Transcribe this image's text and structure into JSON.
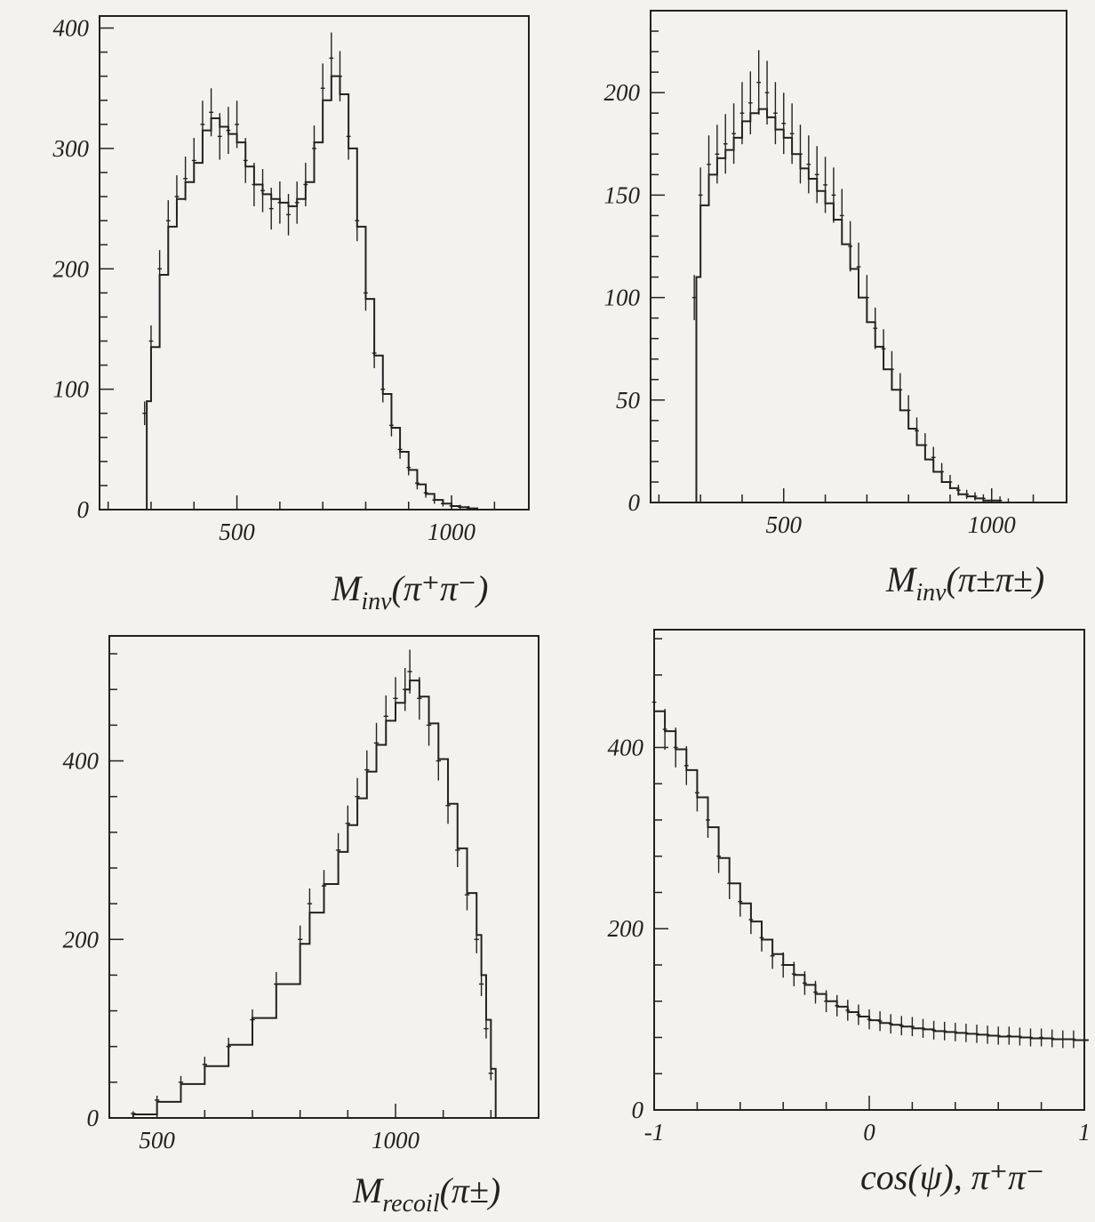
{
  "figure": {
    "background": "#f4f2ee",
    "ink": "#222222",
    "panels": [
      {
        "id": "minv-pm",
        "xlabel_main": "M",
        "xlabel_sub": "inv",
        "xlabel_rest": "(π⁺π⁻)"
      },
      {
        "id": "minv-ss",
        "xlabel_main": "M",
        "xlabel_sub": "inv",
        "xlabel_rest": "(π±π±)"
      },
      {
        "id": "mrecoil",
        "xlabel_main": "M",
        "xlabel_sub": "recoil",
        "xlabel_rest": "(π±)"
      },
      {
        "id": "cospsi",
        "xlabel_main": "cos(ψ), π⁺π⁻",
        "xlabel_sub": "",
        "xlabel_rest": ""
      }
    ]
  },
  "chart_data": [
    {
      "type": "histogram",
      "title": "",
      "xlabel": "M_inv(π⁺π⁻)",
      "ylabel": "",
      "xlim": [
        180,
        1180
      ],
      "ylim": [
        0,
        410
      ],
      "xticks": [
        500,
        1000
      ],
      "yticks": [
        0,
        100,
        200,
        300,
        400
      ],
      "bin_width": 10,
      "series": [
        {
          "kind": "data-points-with-errors",
          "x": [
            285,
            300,
            320,
            340,
            360,
            380,
            400,
            420,
            440,
            460,
            480,
            500,
            520,
            540,
            560,
            580,
            600,
            620,
            640,
            660,
            680,
            700,
            720,
            740,
            760,
            780,
            800,
            820,
            840,
            860,
            880,
            900,
            920,
            940,
            960,
            980,
            1000,
            1020,
            1040
          ],
          "y": [
            80,
            140,
            200,
            240,
            260,
            275,
            290,
            320,
            330,
            310,
            315,
            320,
            290,
            270,
            265,
            250,
            255,
            245,
            255,
            270,
            300,
            350,
            375,
            360,
            310,
            240,
            180,
            130,
            100,
            70,
            50,
            35,
            22,
            14,
            8,
            5,
            3,
            2,
            1
          ]
        },
        {
          "kind": "monte-carlo-histogram",
          "x": [
            280,
            290,
            300,
            320,
            340,
            360,
            380,
            400,
            420,
            440,
            460,
            480,
            500,
            520,
            540,
            560,
            580,
            600,
            620,
            640,
            660,
            680,
            700,
            720,
            740,
            760,
            780,
            800,
            820,
            840,
            860,
            880,
            900,
            920,
            940,
            960,
            980,
            1000,
            1020,
            1040,
            1060
          ],
          "y": [
            0,
            90,
            135,
            195,
            235,
            258,
            272,
            288,
            315,
            325,
            318,
            312,
            305,
            285,
            270,
            262,
            258,
            255,
            252,
            258,
            272,
            305,
            340,
            360,
            345,
            300,
            235,
            175,
            128,
            96,
            68,
            48,
            33,
            21,
            13,
            8,
            5,
            3,
            2,
            1,
            0
          ]
        }
      ]
    },
    {
      "type": "histogram",
      "title": "",
      "xlabel": "M_inv(π±π±)",
      "ylabel": "",
      "xlim": [
        180,
        1180
      ],
      "ylim": [
        0,
        240
      ],
      "xticks": [
        500,
        1000
      ],
      "yticks": [
        0,
        50,
        100,
        150,
        200
      ],
      "bin_width": 10,
      "series": [
        {
          "kind": "data-points-with-errors",
          "x": [
            285,
            300,
            320,
            340,
            360,
            380,
            400,
            420,
            440,
            460,
            480,
            500,
            520,
            540,
            560,
            580,
            600,
            620,
            640,
            660,
            680,
            700,
            720,
            740,
            760,
            780,
            800,
            820,
            840,
            860,
            880,
            900,
            920,
            940,
            960,
            980,
            1000,
            1020,
            1040
          ],
          "y": [
            100,
            150,
            165,
            170,
            175,
            180,
            190,
            195,
            205,
            200,
            190,
            185,
            180,
            170,
            165,
            160,
            155,
            150,
            140,
            125,
            115,
            100,
            85,
            75,
            65,
            55,
            45,
            35,
            28,
            22,
            15,
            10,
            6,
            4,
            3,
            2,
            1,
            1,
            0
          ]
        },
        {
          "kind": "monte-carlo-histogram",
          "x": [
            280,
            290,
            300,
            320,
            340,
            360,
            380,
            400,
            420,
            440,
            460,
            480,
            500,
            520,
            540,
            560,
            580,
            600,
            620,
            640,
            660,
            680,
            700,
            720,
            740,
            760,
            780,
            800,
            820,
            840,
            860,
            880,
            900,
            920,
            940,
            960,
            980,
            1000,
            1020,
            1040
          ],
          "y": [
            0,
            110,
            145,
            160,
            168,
            172,
            178,
            186,
            190,
            192,
            188,
            182,
            178,
            170,
            163,
            158,
            152,
            146,
            138,
            126,
            114,
            100,
            88,
            76,
            65,
            55,
            45,
            36,
            28,
            21,
            15,
            10,
            7,
            4,
            3,
            2,
            1,
            1,
            0,
            0
          ]
        }
      ]
    },
    {
      "type": "histogram",
      "title": "",
      "xlabel": "M_recoil(π±)",
      "ylabel": "",
      "xlim": [
        400,
        1300
      ],
      "ylim": [
        0,
        540
      ],
      "xticks": [
        500,
        1000
      ],
      "yticks": [
        0,
        200,
        400
      ],
      "bin_width": 10,
      "series": [
        {
          "kind": "data-points-with-errors",
          "x": [
            450,
            500,
            550,
            600,
            650,
            700,
            750,
            800,
            820,
            850,
            880,
            900,
            920,
            940,
            960,
            980,
            1000,
            1020,
            1030,
            1050,
            1070,
            1090,
            1110,
            1130,
            1150,
            1170,
            1180,
            1190,
            1200
          ],
          "y": [
            5,
            20,
            40,
            60,
            80,
            110,
            150,
            200,
            240,
            260,
            300,
            330,
            360,
            390,
            420,
            450,
            470,
            480,
            500,
            470,
            440,
            400,
            350,
            300,
            250,
            200,
            150,
            100,
            50
          ]
        },
        {
          "kind": "monte-carlo-histogram",
          "x": [
            420,
            450,
            500,
            550,
            600,
            650,
            700,
            750,
            800,
            820,
            850,
            880,
            900,
            920,
            940,
            960,
            980,
            1000,
            1020,
            1030,
            1050,
            1070,
            1090,
            1110,
            1130,
            1150,
            1170,
            1180,
            1190,
            1200,
            1210
          ],
          "y": [
            0,
            4,
            18,
            38,
            58,
            82,
            112,
            150,
            195,
            230,
            262,
            298,
            328,
            358,
            388,
            418,
            445,
            465,
            480,
            490,
            472,
            442,
            402,
            352,
            302,
            252,
            205,
            160,
            110,
            55,
            0
          ]
        }
      ]
    },
    {
      "type": "histogram",
      "title": "",
      "xlabel": "cos(ψ), π⁺π⁻",
      "ylabel": "",
      "xlim": [
        -1,
        1
      ],
      "ylim": [
        0,
        530
      ],
      "xticks": [
        -1,
        0,
        1
      ],
      "yticks": [
        0,
        200,
        400
      ],
      "bin_width": 0.02,
      "series": [
        {
          "kind": "data-points-with-errors",
          "x": [
            -1.0,
            -0.95,
            -0.9,
            -0.85,
            -0.8,
            -0.75,
            -0.7,
            -0.65,
            -0.6,
            -0.55,
            -0.5,
            -0.45,
            -0.4,
            -0.35,
            -0.3,
            -0.25,
            -0.2,
            -0.15,
            -0.1,
            -0.05,
            0.0,
            0.05,
            0.1,
            0.15,
            0.2,
            0.25,
            0.3,
            0.35,
            0.4,
            0.45,
            0.5,
            0.55,
            0.6,
            0.65,
            0.7,
            0.75,
            0.8,
            0.85,
            0.9,
            0.95,
            1.0
          ],
          "y": [
            450,
            420,
            400,
            380,
            350,
            320,
            280,
            250,
            230,
            210,
            190,
            170,
            160,
            150,
            140,
            130,
            120,
            115,
            110,
            105,
            100,
            98,
            95,
            93,
            92,
            90,
            88,
            87,
            86,
            85,
            84,
            83,
            82,
            82,
            81,
            80,
            80,
            79,
            78,
            78,
            77
          ]
        },
        {
          "kind": "monte-carlo-histogram",
          "x": [
            -1.0,
            -0.95,
            -0.9,
            -0.85,
            -0.8,
            -0.75,
            -0.7,
            -0.65,
            -0.6,
            -0.55,
            -0.5,
            -0.45,
            -0.4,
            -0.35,
            -0.3,
            -0.25,
            -0.2,
            -0.15,
            -0.1,
            -0.05,
            0.0,
            0.05,
            0.1,
            0.15,
            0.2,
            0.25,
            0.3,
            0.35,
            0.4,
            0.45,
            0.5,
            0.55,
            0.6,
            0.65,
            0.7,
            0.75,
            0.8,
            0.85,
            0.9,
            0.95,
            1.0
          ],
          "y": [
            440,
            418,
            398,
            375,
            345,
            312,
            278,
            250,
            228,
            208,
            188,
            172,
            160,
            149,
            138,
            128,
            120,
            114,
            108,
            103,
            99,
            96,
            94,
            92,
            90,
            89,
            87,
            86,
            85,
            84,
            83,
            82,
            81,
            81,
            80,
            79,
            79,
            78,
            78,
            77,
            77
          ]
        }
      ]
    }
  ]
}
